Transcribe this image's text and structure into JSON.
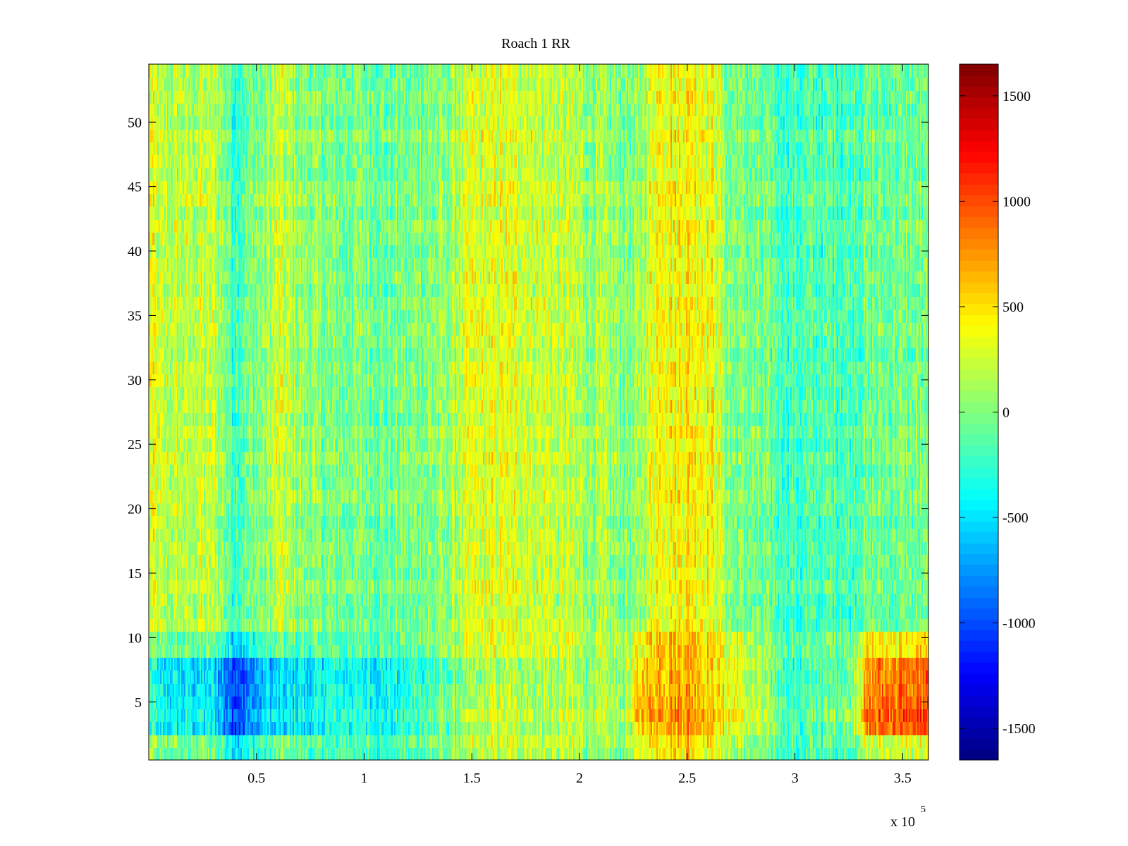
{
  "chart_data": [
    {
      "type": "heatmap",
      "title": "Roach 1 RR",
      "xlabel": "",
      "ylabel": "",
      "x_exponent_label": "x 10",
      "x_exponent_power": "5",
      "xlim": [
        0,
        3.62
      ],
      "ylim": [
        0.5,
        54.5
      ],
      "rows": 54,
      "xticks": [
        0.5,
        1,
        1.5,
        2,
        2.5,
        3,
        3.5
      ],
      "xtick_labels": [
        "0.5",
        "1",
        "1.5",
        "2",
        "2.5",
        "3",
        "3.5"
      ],
      "yticks": [
        5,
        10,
        15,
        20,
        25,
        30,
        35,
        40,
        45,
        50
      ],
      "ytick_labels": [
        "5",
        "10",
        "15",
        "20",
        "25",
        "30",
        "35",
        "40",
        "45",
        "50"
      ],
      "grid": false,
      "colormap": "jet",
      "clim": [
        -1650,
        1650
      ],
      "colorbar_ticks": [
        -1500,
        -1000,
        -500,
        0,
        500,
        1000,
        1500
      ],
      "colorbar_tick_labels": [
        "-1500",
        "-1000",
        "-500",
        "0",
        "500",
        "1000",
        "1500"
      ],
      "value_profile_by_x": {
        "x": [
          0.0,
          0.05,
          0.2,
          0.3,
          0.37,
          0.4,
          0.45,
          0.55,
          0.6,
          0.7,
          0.85,
          1.0,
          1.1,
          1.2,
          1.4,
          1.5,
          1.7,
          1.85,
          2.0,
          2.2,
          2.27,
          2.35,
          2.5,
          2.62,
          2.7,
          2.9,
          3.0,
          3.2,
          3.3,
          3.45,
          3.62
        ],
        "values": [
          400,
          180,
          180,
          220,
          -50,
          -200,
          -50,
          80,
          250,
          60,
          -30,
          20,
          -60,
          -30,
          80,
          280,
          300,
          250,
          120,
          30,
          20,
          420,
          480,
          380,
          0,
          -100,
          -180,
          -150,
          -100,
          -50,
          -60
        ]
      },
      "low_band_rows_1_to_10": {
        "x": [
          0.0,
          0.05,
          0.3,
          0.4,
          0.55,
          0.7,
          0.95,
          1.1,
          1.4,
          1.6,
          2.2,
          2.3,
          2.5,
          2.65,
          3.0,
          3.25,
          3.35,
          3.62
        ],
        "values": [
          -150,
          -450,
          -450,
          -1000,
          -550,
          -450,
          -300,
          -400,
          -50,
          200,
          100,
          650,
          800,
          500,
          -200,
          0,
          850,
          950
        ]
      },
      "noise_amplitude": 320
    }
  ]
}
